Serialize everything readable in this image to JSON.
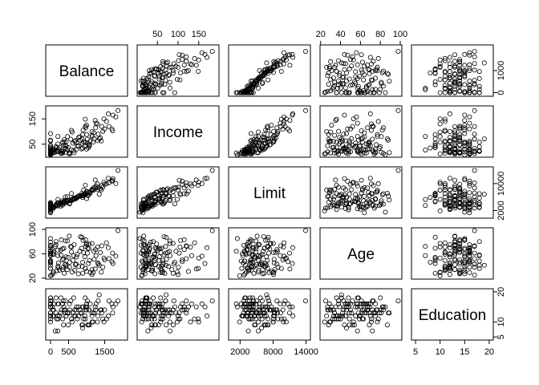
{
  "chart_data": {
    "type": "scatter",
    "title": "",
    "variables": [
      {
        "name": "Balance",
        "ylim": [
          -90,
          2090
        ],
        "ticks": [
          0,
          500,
          1500
        ],
        "tick_side": "bottom",
        "tick_labels": [
          "0",
          "500",
          "1500"
        ],
        "side_axis": "right",
        "side_ticks": [
          0,
          1000
        ],
        "side_tick_labels": [
          "0",
          "1000"
        ]
      },
      {
        "name": "Income",
        "ylim": [
          5,
          195
        ],
        "ticks": [
          50,
          100,
          150
        ],
        "tick_side": "top",
        "tick_labels": [
          "50",
          "100",
          "150"
        ],
        "side_axis": "left",
        "side_ticks": [
          50,
          150
        ],
        "side_tick_labels": [
          "50",
          "150"
        ]
      },
      {
        "name": "Limit",
        "ylim": [
          200,
          14500
        ],
        "ticks": [
          2000,
          8000,
          14000
        ],
        "tick_side": "bottom",
        "tick_labels": [
          "2000",
          "8000",
          "14000"
        ],
        "side_axis": "right",
        "side_ticks": [
          2000,
          10000
        ],
        "side_tick_labels": [
          "2000",
          "10000"
        ]
      },
      {
        "name": "Age",
        "ylim": [
          21,
          100
        ],
        "ticks": [
          20,
          40,
          60,
          80,
          100
        ],
        "tick_side": "top",
        "tick_labels": [
          "20",
          "40",
          "60",
          "80",
          "100"
        ],
        "side_axis": "left",
        "side_ticks": [
          20,
          60,
          100
        ],
        "side_tick_labels": [
          "20",
          "60",
          "100"
        ]
      },
      {
        "name": "Education",
        "ylim": [
          4.5,
          20.5
        ],
        "ticks": [
          5,
          10,
          15,
          20
        ],
        "tick_side": "bottom",
        "tick_labels": [
          "5",
          "10",
          "15",
          "20"
        ],
        "side_axis": "right",
        "side_ticks": [
          5,
          10,
          20
        ],
        "side_tick_labels": [
          "5",
          "10",
          "20"
        ]
      }
    ],
    "marker": "open-circle",
    "color": "#000000",
    "points": [
      [
        333,
        14.9,
        3606,
        34,
        11
      ],
      [
        903,
        106.0,
        6645,
        82,
        15
      ],
      [
        580,
        104.6,
        7075,
        71,
        11
      ],
      [
        964,
        148.9,
        9504,
        36,
        11
      ],
      [
        331,
        55.9,
        4897,
        68,
        16
      ],
      [
        1151,
        80.2,
        8047,
        77,
        10
      ],
      [
        203,
        21.0,
        3388,
        37,
        12
      ],
      [
        872,
        71.4,
        7114,
        87,
        9
      ],
      [
        279,
        15.1,
        3300,
        66,
        13
      ],
      [
        1350,
        71.1,
        6819,
        41,
        19
      ],
      [
        1407,
        63.1,
        8117,
        30,
        14
      ],
      [
        0,
        15.0,
        1311,
        64,
        16
      ],
      [
        204,
        80.6,
        5308,
        57,
        7
      ],
      [
        1081,
        43.7,
        6922,
        49,
        9
      ],
      [
        148,
        19.1,
        3291,
        75,
        13
      ],
      [
        0,
        19.1,
        2525,
        57,
        15
      ],
      [
        0,
        20.1,
        3714,
        73,
        17
      ],
      [
        368,
        59.9,
        4378,
        69,
        15
      ],
      [
        891,
        88.3,
        6384,
        28,
        9
      ],
      [
        1048,
        36.5,
        6626,
        44,
        9
      ],
      [
        89,
        29.3,
        2860,
        63,
        16
      ],
      [
        968,
        121.0,
        6963,
        72,
        14
      ],
      [
        0,
        10.7,
        3062,
        61,
        16
      ],
      [
        411,
        33.6,
        6029,
        43,
        17
      ],
      [
        0,
        21.9,
        2849,
        48,
        18
      ],
      [
        671,
        61.2,
        5360,
        33,
        14
      ],
      [
        654,
        16.4,
        5303,
        75,
        12
      ],
      [
        467,
        27.9,
        6107,
        34,
        13
      ],
      [
        1809,
        157.8,
        9987,
        56,
        16
      ],
      [
        915,
        58.3,
        8070,
        62,
        11
      ],
      [
        863,
        31.3,
        6466,
        69,
        13
      ],
      [
        0,
        28.8,
        2840,
        48,
        15
      ],
      [
        527,
        10.4,
        3974,
        38,
        16
      ],
      [
        209,
        22.9,
        4201,
        40,
        11
      ],
      [
        531,
        14.8,
        4279,
        46,
        14
      ],
      [
        1000,
        30.6,
        5540,
        75,
        16
      ],
      [
        81,
        15.9,
        3134,
        30,
        14
      ],
      [
        1238,
        144.0,
        11061,
        35,
        15
      ],
      [
        1032,
        53.0,
        6432,
        69,
        9
      ],
      [
        405,
        46.0,
        5000,
        42,
        13
      ],
      [
        1311,
        64.0,
        8200,
        45,
        12
      ],
      [
        62,
        24.8,
        2400,
        60,
        12
      ],
      [
        1500,
        110.0,
        9800,
        50,
        14
      ],
      [
        0,
        45.0,
        4400,
        70,
        16
      ],
      [
        250,
        38.0,
        4100,
        33,
        12
      ],
      [
        720,
        55.0,
        5600,
        55,
        15
      ],
      [
        1200,
        95.0,
        8800,
        64,
        13
      ],
      [
        1620,
        120.0,
        10200,
        52,
        17
      ],
      [
        0,
        12.2,
        1900,
        24,
        10
      ],
      [
        150,
        40.0,
        3800,
        80,
        18
      ],
      [
        890,
        35.0,
        5900,
        46,
        8
      ],
      [
        410,
        18.0,
        4200,
        81,
        14
      ],
      [
        780,
        77.0,
        6400,
        39,
        12
      ],
      [
        1300,
        130.0,
        9900,
        71,
        10
      ],
      [
        0,
        66.0,
        4100,
        58,
        13
      ],
      [
        30,
        13.0,
        2700,
        25,
        17
      ],
      [
        1730,
        165.0,
        11500,
        44,
        15
      ],
      [
        580,
        28.0,
        4900,
        63,
        11
      ],
      [
        1100,
        62.0,
        7300,
        29,
        16
      ],
      [
        360,
        45.5,
        4600,
        52,
        9
      ],
      [
        0,
        17.0,
        2300,
        36,
        12
      ],
      [
        999,
        88.0,
        7600,
        77,
        14
      ],
      [
        620,
        54.0,
        5400,
        49,
        13
      ],
      [
        50,
        30.5,
        3200,
        67,
        15
      ],
      [
        1450,
        101.0,
        8900,
        38,
        11
      ],
      [
        285,
        23.4,
        4300,
        58,
        18
      ],
      [
        0,
        19.9,
        2600,
        45,
        12
      ],
      [
        1870,
        182.7,
        13913,
        98,
        17
      ],
      [
        770,
        44.0,
        6100,
        27,
        15
      ],
      [
        130,
        27.0,
        3500,
        72,
        7
      ],
      [
        1020,
        70.0,
        7200,
        61,
        17
      ],
      [
        430,
        60.0,
        4700,
        40,
        12
      ],
      [
        0,
        34.0,
        3500,
        79,
        13
      ],
      [
        600,
        98.0,
        5300,
        30,
        10
      ],
      [
        1250,
        115.0,
        8700,
        67,
        14
      ],
      [
        330,
        20.5,
        4050,
        50,
        16
      ],
      [
        950,
        41.0,
        6800,
        55,
        12
      ],
      [
        710,
        29.0,
        5600,
        43,
        14
      ],
      [
        0,
        8.0,
        1500,
        85,
        15
      ],
      [
        1150,
        85.0,
        8300,
        34,
        13
      ],
      [
        200,
        51.0,
        4300,
        66,
        16
      ],
      [
        1550,
        140.0,
        10000,
        78,
        11
      ],
      [
        490,
        37.0,
        4800,
        54,
        9
      ],
      [
        0,
        22.0,
        3000,
        41,
        18
      ],
      [
        830,
        66.0,
        6300,
        88,
        13
      ],
      [
        1700,
        110.0,
        10700,
        47,
        16
      ],
      [
        90,
        16.0,
        3100,
        59,
        12
      ],
      [
        1000,
        125.0,
        7700,
        31,
        15
      ],
      [
        560,
        70.0,
        5000,
        72,
        17
      ],
      [
        1380,
        75.0,
        8500,
        62,
        14
      ],
      [
        0,
        63.0,
        3900,
        49,
        11
      ],
      [
        300,
        14.0,
        3900,
        83,
        14
      ],
      [
        1150,
        100.0,
        8100,
        26,
        12
      ],
      [
        640,
        25.0,
        5700,
        57,
        18
      ],
      [
        0,
        11.0,
        2700,
        74,
        13
      ],
      [
        880,
        53.0,
        6600,
        39,
        15
      ],
      [
        1480,
        150.0,
        10400,
        53,
        10
      ],
      [
        220,
        32.0,
        3800,
        45,
        16
      ],
      [
        1060,
        47.0,
        7400,
        68,
        14
      ],
      [
        0,
        38.0,
        3300,
        36,
        12
      ],
      [
        470,
        80.0,
        4900,
        81,
        13
      ],
      [
        1320,
        90.0,
        8700,
        43,
        17
      ],
      [
        740,
        43.0,
        6000,
        59,
        11
      ],
      [
        0,
        26.0,
        2800,
        65,
        16
      ],
      [
        1210,
        72.0,
        8200,
        51,
        13
      ],
      [
        380,
        68.0,
        4500,
        28,
        14
      ],
      [
        1600,
        170.0,
        11600,
        70,
        12
      ],
      [
        960,
        58.0,
        7000,
        36,
        18
      ],
      [
        0,
        92.0,
        4000,
        46,
        15
      ],
      [
        520,
        17.0,
        5100,
        89,
        13
      ],
      [
        1260,
        133.0,
        9300,
        57,
        16
      ],
      [
        170,
        36.0,
        3600,
        32,
        11
      ],
      [
        1070,
        48.0,
        7500,
        76,
        14
      ],
      [
        690,
        64.0,
        5800,
        42,
        12
      ],
      [
        0,
        44.0,
        3700,
        60,
        15
      ],
      [
        1420,
        120.0,
        9400,
        73,
        13
      ],
      [
        350,
        23.0,
        4400,
        38,
        17
      ],
      [
        1180,
        58.0,
        8000,
        29,
        10
      ],
      [
        810,
        79.0,
        6200,
        64,
        14
      ],
      [
        0,
        13.0,
        2200,
        48,
        16
      ],
      [
        1720,
        103.0,
        11000,
        61,
        13
      ],
      [
        430,
        42.0,
        4600,
        55,
        12
      ],
      [
        970,
        115.0,
        7000,
        83,
        15
      ],
      [
        60,
        20.0,
        2900,
        27,
        14
      ]
    ]
  }
}
